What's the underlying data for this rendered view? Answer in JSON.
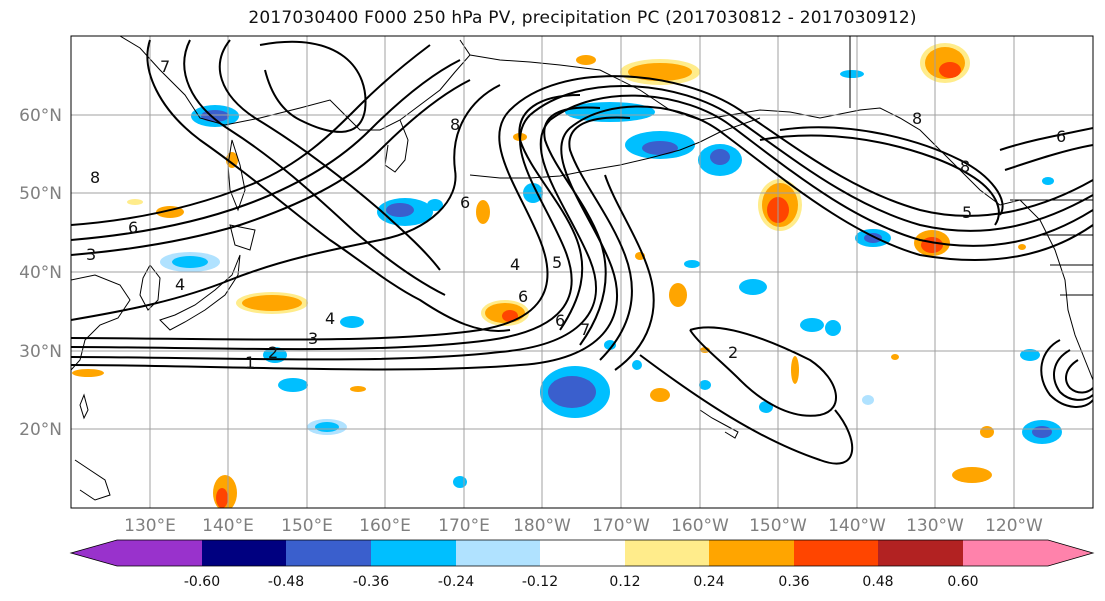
{
  "title": "2017030400 F000 250 hPa PV, precipitation PC (2017030812 - 2017030912)",
  "latitude_labels": [
    "60°N",
    "50°N",
    "40°N",
    "30°N",
    "20°N"
  ],
  "longitude_labels": [
    "130°E",
    "140°E",
    "150°E",
    "160°E",
    "170°E",
    "180°W",
    "170°W",
    "160°W",
    "150°W",
    "140°W",
    "130°W",
    "120°W"
  ],
  "colorbar": {
    "tick_labels": [
      "-0.60",
      "-0.48",
      "-0.36",
      "-0.24",
      "-0.12",
      "0.12",
      "0.24",
      "0.36",
      "0.48",
      "0.60"
    ],
    "colors": [
      "#9932cc",
      "#000080",
      "#3a5fcd",
      "#00bfff",
      "#b0e2ff",
      "#ffffff",
      "#ffec8b",
      "#ffa500",
      "#ff4500",
      "#b22222",
      "#ff82ab"
    ]
  },
  "contour_labels": [
    "7",
    "8",
    "8",
    "6",
    "3",
    "4",
    "4",
    "3",
    "2",
    "1",
    "6",
    "6",
    "4",
    "5",
    "6",
    "7",
    "2",
    "8",
    "6",
    "8",
    "5"
  ]
}
